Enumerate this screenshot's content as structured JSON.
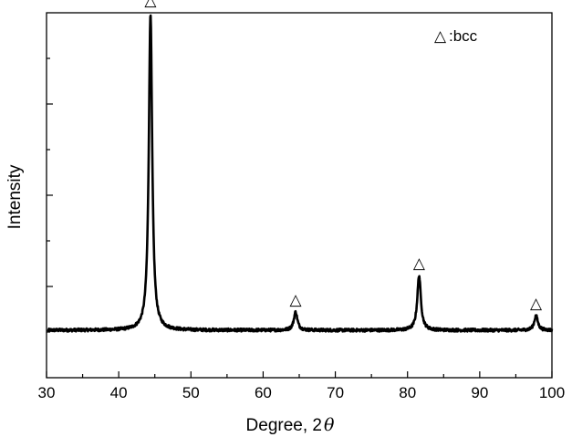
{
  "chart_data": {
    "type": "line",
    "title": "",
    "xlabel": "Degree, 2",
    "xlabel_symbol": "θ",
    "ylabel": "Intensity",
    "xlim": [
      30,
      100
    ],
    "ylim": [
      0,
      100
    ],
    "x_ticks": [
      30,
      40,
      50,
      60,
      70,
      80,
      90,
      100
    ],
    "x_minor_step": 5,
    "y_ticks_shown": false,
    "grid": false,
    "line_color": "#000000",
    "marker_symbol": "△",
    "legend": {
      "label": ":bcc",
      "placement": "top-right"
    },
    "baseline": 13,
    "noise_amplitude": 0.4,
    "peaks": [
      {
        "center": 44.4,
        "height": 87,
        "width": 0.28,
        "marker": true
      },
      {
        "center": 64.5,
        "height": 5,
        "width": 0.3,
        "marker": true
      },
      {
        "center": 81.6,
        "height": 15,
        "width": 0.3,
        "marker": true
      },
      {
        "center": 97.8,
        "height": 4,
        "width": 0.3,
        "marker": true
      }
    ]
  }
}
